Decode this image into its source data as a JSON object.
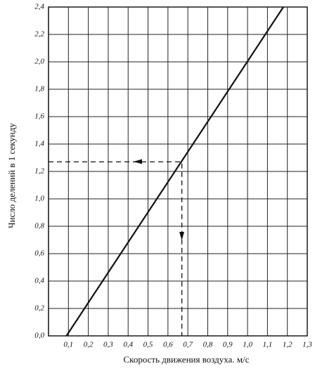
{
  "chart_data": {
    "type": "line",
    "x_label": "Скорость движения воздуха. м/с",
    "y_label": "Число делений в 1 секунду",
    "series": [
      {
        "x": [
          0.09,
          1.18
        ],
        "values": [
          0,
          2.4
        ],
        "color": "#111111"
      },
      {
        "x": [
          0,
          0.67,
          0.67
        ],
        "values": [
          1.27,
          1.27,
          0
        ],
        "color": "#111111",
        "dashed": true
      }
    ],
    "xlim": [
      0,
      1.3
    ],
    "ylim": [
      0,
      2.4
    ],
    "xticks": [
      {
        "value": 0.1,
        "label": "0,1"
      },
      {
        "value": 0.2,
        "label": "0,2"
      },
      {
        "value": 0.3,
        "label": "0,3"
      },
      {
        "value": 0.4,
        "label": "0,4"
      },
      {
        "value": 0.5,
        "label": "0,5"
      },
      {
        "value": 0.6,
        "label": "0,6"
      },
      {
        "value": 0.7,
        "label": "0,7"
      },
      {
        "value": 0.8,
        "label": "0,8"
      },
      {
        "value": 0.9,
        "label": "0,9"
      },
      {
        "value": 1.0,
        "label": "1,0"
      },
      {
        "value": 1.1,
        "label": "1,1"
      },
      {
        "value": 1.2,
        "label": "1,2"
      },
      {
        "value": 1.3,
        "label": "1,3"
      }
    ],
    "yticks": [
      {
        "value": 0,
        "label": "0,0"
      },
      {
        "value": 0.2,
        "label": "0,2"
      },
      {
        "value": 0.4,
        "label": "0,4"
      },
      {
        "value": 0.6,
        "label": "0,6"
      },
      {
        "value": 0.8,
        "label": "0,8"
      },
      {
        "value": 1.0,
        "label": "1,0"
      },
      {
        "value": 1.2,
        "label": "1,2"
      },
      {
        "value": 1.4,
        "label": "1,4"
      },
      {
        "value": 1.6,
        "label": "1,6"
      },
      {
        "value": 1.8,
        "label": "1,8"
      },
      {
        "value": 2.0,
        "label": "2,0"
      },
      {
        "value": 2.2,
        "label": "2,2"
      },
      {
        "value": 2.4,
        "label": "2,4"
      }
    ],
    "grid": true
  }
}
